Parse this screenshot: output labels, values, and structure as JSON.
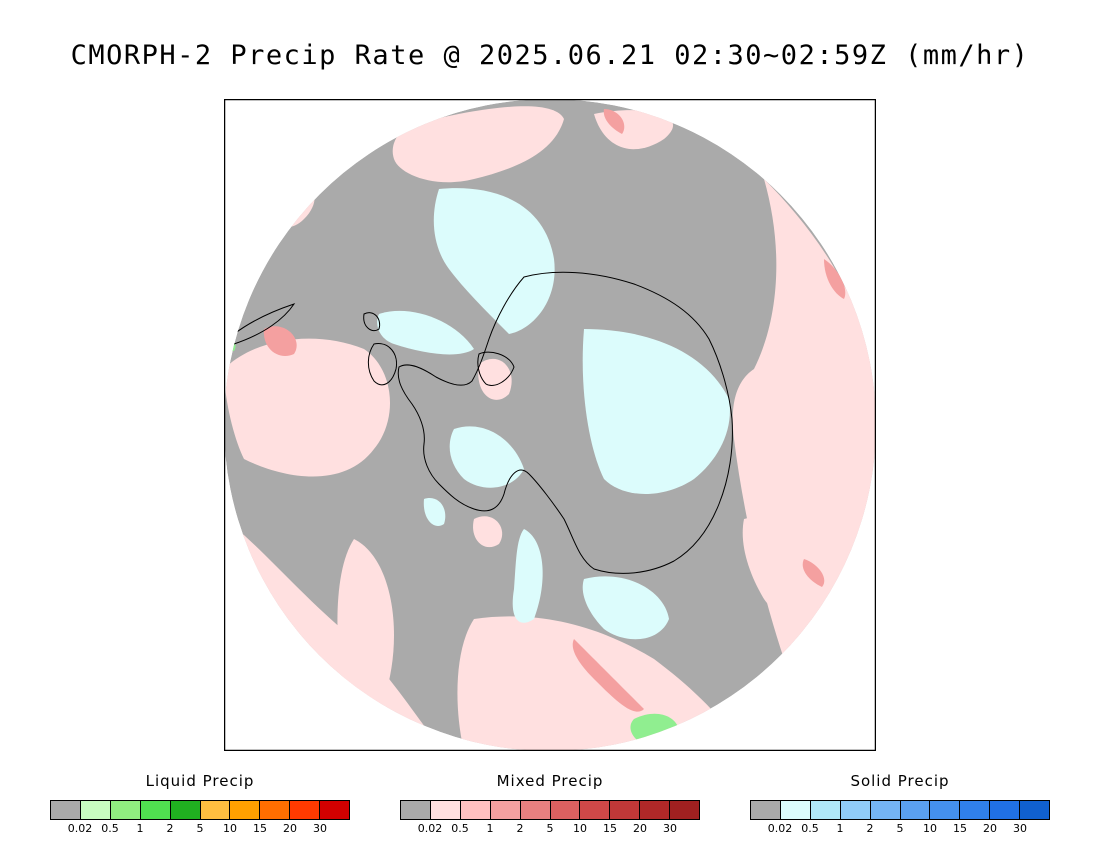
{
  "title": "CMORPH-2 Precip Rate @ 2025.06.21 02:30~02:59Z (mm/hr)",
  "map": {
    "projection": "south polar stereographic",
    "colors": {
      "no_precip": "#aaaaaa",
      "mixed_light": "#ffe0e0",
      "mixed_mid": "#f4a0a0",
      "mixed_heavy": "#e07878",
      "solid_light": "#dcfcfc",
      "liquid_light": "#90ee90",
      "coast": "#000000"
    }
  },
  "legends": [
    {
      "title": "Liquid Precip",
      "ticks": [
        "0.02",
        "0.5",
        "1",
        "2",
        "5",
        "10",
        "15",
        "20",
        "30"
      ],
      "colors": [
        "#aaaaaa",
        "#c8fcc0",
        "#90ee80",
        "#50e050",
        "#20b020",
        "#ffbe40",
        "#ffa000",
        "#ff6e00",
        "#ff3a00",
        "#d20000"
      ]
    },
    {
      "title": "Mixed Precip",
      "ticks": [
        "0.02",
        "0.5",
        "1",
        "2",
        "5",
        "10",
        "15",
        "20",
        "30"
      ],
      "colors": [
        "#aaaaaa",
        "#ffe0e0",
        "#ffc0c0",
        "#f4a0a0",
        "#e88080",
        "#dc6060",
        "#d04848",
        "#c03838",
        "#b02828",
        "#a02020"
      ]
    },
    {
      "title": "Solid Precip",
      "ticks": [
        "0.02",
        "0.5",
        "1",
        "2",
        "5",
        "10",
        "15",
        "20",
        "30"
      ],
      "colors": [
        "#aaaaaa",
        "#dcfcfc",
        "#b0e8f8",
        "#90ccf8",
        "#74b4f4",
        "#5aa0f0",
        "#4490ee",
        "#3080ea",
        "#2070e4",
        "#1060d0"
      ]
    }
  ]
}
